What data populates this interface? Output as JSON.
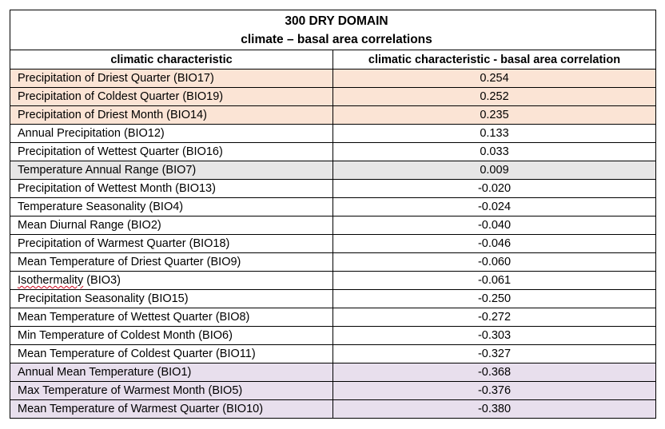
{
  "title": "300 DRY DOMAIN",
  "subtitle": "climate – basal area correlations",
  "columns": [
    "climatic characteristic",
    "climatic characteristic - basal area correlation"
  ],
  "highlight_colors": {
    "peach": "#fbe4d5",
    "gray": "#e7e6e6",
    "lilac": "#e8dfed"
  },
  "rows": [
    {
      "name": "Precipitation of Driest Quarter (BIO17)",
      "value": "0.254",
      "highlight": "peach"
    },
    {
      "name": "Precipitation of Coldest Quarter (BIO19)",
      "value": "0.252",
      "highlight": "peach"
    },
    {
      "name": "Precipitation of Driest Month (BIO14)",
      "value": "0.235",
      "highlight": "peach"
    },
    {
      "name": "Annual Precipitation (BIO12)",
      "value": "0.133",
      "highlight": ""
    },
    {
      "name": "Precipitation of Wettest Quarter (BIO16)",
      "value": "0.033",
      "highlight": ""
    },
    {
      "name": "Temperature Annual Range (BIO7)",
      "value": "0.009",
      "highlight": "gray"
    },
    {
      "name": "Precipitation of Wettest Month (BIO13)",
      "value": "-0.020",
      "highlight": ""
    },
    {
      "name": "Temperature Seasonality (BIO4)",
      "value": "-0.024",
      "highlight": ""
    },
    {
      "name": "Mean Diurnal Range (BIO2)",
      "value": "-0.040",
      "highlight": ""
    },
    {
      "name": "Precipitation of Warmest Quarter (BIO18)",
      "value": "-0.046",
      "highlight": ""
    },
    {
      "name": "Mean Temperature of Driest Quarter (BIO9)",
      "value": "-0.060",
      "highlight": ""
    },
    {
      "name": "Isothermality (BIO3)",
      "value": "-0.061",
      "highlight": ""
    },
    {
      "name": "Precipitation Seasonality (BIO15)",
      "value": "-0.250",
      "highlight": ""
    },
    {
      "name": "Mean Temperature of Wettest Quarter (BIO8)",
      "value": "-0.272",
      "highlight": ""
    },
    {
      "name": "Min Temperature of Coldest Month (BIO6)",
      "value": "-0.303",
      "highlight": ""
    },
    {
      "name": "Mean Temperature of Coldest Quarter (BIO11)",
      "value": "-0.327",
      "highlight": ""
    },
    {
      "name": "Annual Mean Temperature (BIO1)",
      "value": "-0.368",
      "highlight": "lilac"
    },
    {
      "name": "Max Temperature of Warmest Month (BIO5)",
      "value": "-0.376",
      "highlight": "lilac"
    },
    {
      "name": "Mean Temperature of Warmest Quarter (BIO10)",
      "value": "-0.380",
      "highlight": "lilac"
    }
  ]
}
